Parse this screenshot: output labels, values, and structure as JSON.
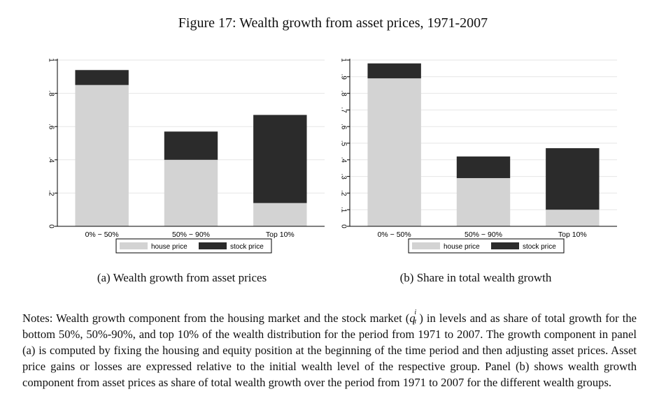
{
  "figure": {
    "title": "Figure 17: Wealth growth from asset prices, 1971-2007"
  },
  "captions": {
    "a": "(a) Wealth growth from asset prices",
    "b": "(b) Share in total wealth growth"
  },
  "notes": {
    "before_symbol": "Notes: Wealth growth component from the housing market and the stock market (",
    "symbol_base": "q",
    "symbol_sup": "i",
    "symbol_sub": "t",
    "after_symbol": ") in levels and as share of total growth for the bottom 50%, 50%-90%, and top 10% of the wealth distribution for the period from 1971 to 2007. The growth component in panel (a) is computed by fixing the housing and equity position at the beginning of the time period and then adjusting asset prices. Asset price gains or losses are expressed relative to the initial wealth level of the respective group. Panel (b) shows wealth growth component from asset prices as share of total wealth growth over the period from 1971 to 2007 for the different wealth groups."
  },
  "colors": {
    "house": "#d3d3d3",
    "stock": "#2b2b2b",
    "grid": "#e6e6e6",
    "axis": "#000000"
  },
  "chart_data": [
    {
      "type": "bar",
      "stacked": true,
      "categories": [
        "0% − 50%",
        "50% − 90%",
        "Top 10%"
      ],
      "series": [
        {
          "name": "house price",
          "values": [
            0.85,
            0.4,
            0.14
          ]
        },
        {
          "name": "stock price",
          "values": [
            0.09,
            0.17,
            0.53
          ]
        }
      ],
      "ylim": [
        0,
        1
      ],
      "yticks": [
        0,
        0.2,
        0.4,
        0.6,
        0.8,
        1
      ],
      "ytick_labels": [
        "0",
        ".2",
        ".4",
        ".6",
        ".8",
        "1"
      ],
      "grid": true,
      "legend_placement": "bottom"
    },
    {
      "type": "bar",
      "stacked": true,
      "categories": [
        "0% − 50%",
        "50% − 90%",
        "Top 10%"
      ],
      "series": [
        {
          "name": "house price",
          "values": [
            0.89,
            0.29,
            0.1
          ]
        },
        {
          "name": "stock price",
          "values": [
            0.09,
            0.13,
            0.37
          ]
        }
      ],
      "ylim": [
        0,
        1
      ],
      "yticks": [
        0,
        0.1,
        0.2,
        0.3,
        0.4,
        0.5,
        0.6,
        0.7,
        0.8,
        0.9,
        1
      ],
      "ytick_labels": [
        "0",
        ".1",
        ".2",
        ".3",
        ".4",
        ".5",
        ".6",
        ".7",
        ".8",
        ".9",
        "1"
      ],
      "grid": true,
      "legend_placement": "bottom"
    }
  ]
}
